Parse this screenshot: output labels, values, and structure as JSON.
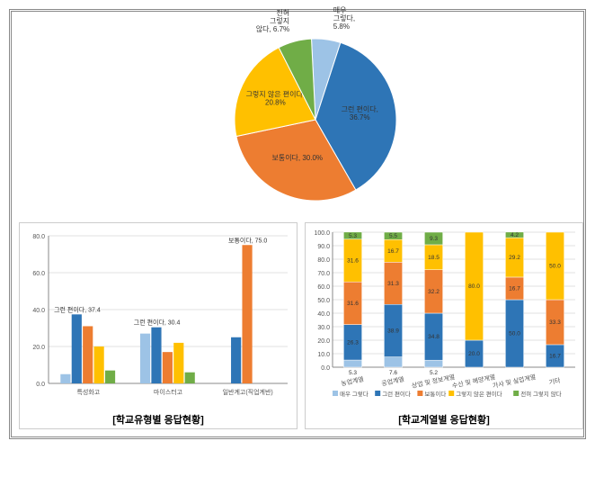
{
  "pie": {
    "type": "pie",
    "slices": [
      {
        "label": "매우 그렇다",
        "value": 5.8,
        "color": "#9dc3e6",
        "label_text": "매우\n그렇다,\n5.8%"
      },
      {
        "label": "그런 편이다",
        "value": 36.7,
        "color": "#2e75b6",
        "label_text": "그런 편이다,\n36.7%"
      },
      {
        "label": "보통이다",
        "value": 30.0,
        "color": "#ed7d31",
        "label_text": "보통이다, 30.0%"
      },
      {
        "label": "그렇지 않은 편이다",
        "value": 20.8,
        "color": "#ffc000",
        "label_text": "그렇지 않은 편이다,\n20.8%"
      },
      {
        "label": "전혀 그렇지 않다",
        "value": 6.7,
        "color": "#70ad47",
        "label_text": "전혀\n그렇지\n않다, 6.7%"
      }
    ],
    "background_color": "#ffffff",
    "border_color": "#ffffff"
  },
  "bar_left": {
    "type": "bar",
    "ylim": [
      0,
      80
    ],
    "ytick_step": 20,
    "grid_color": "#e0e0e0",
    "colors": [
      "#9dc3e6",
      "#2e75b6",
      "#ed7d31",
      "#ffc000",
      "#70ad47"
    ],
    "series_names": [
      "매우 그렇다",
      "그런 편이다",
      "보통이다",
      "그렇지 않은 편이다",
      "전혀 그렇지 않다"
    ],
    "groups": [
      {
        "label": "특성화고",
        "values": [
          5,
          37.4,
          31,
          20,
          7
        ],
        "annot": {
          "text": "그런 편이다, 37.4",
          "i": 1
        }
      },
      {
        "label": "마이스터고",
        "values": [
          27,
          30.4,
          17,
          22,
          6
        ],
        "annot": {
          "text": "그런 편이다, 30.4",
          "i": 1
        }
      },
      {
        "label": "일반계고(직업계반)",
        "values": [
          0,
          25,
          75.0,
          0,
          0
        ],
        "annot": {
          "text": "보통이다, 75.0",
          "i": 2
        }
      }
    ],
    "caption": "[학교유형별 응답현황]"
  },
  "bar_right": {
    "type": "stacked-bar",
    "ylim": [
      0,
      100
    ],
    "ytick_step": 10,
    "grid_color": "#e0e0e0",
    "colors": [
      "#9dc3e6",
      "#2e75b6",
      "#ed7d31",
      "#ffc000",
      "#70ad47"
    ],
    "series_names": [
      "매우 그렇다",
      "그런 편이다",
      "보통이다",
      "그렇지 않은 편이다",
      "전혀 그렇지 않다"
    ],
    "groups": [
      {
        "label": "농업계열",
        "values": [
          5.3,
          26.3,
          31.6,
          31.6,
          5.3
        ],
        "show": [
          "5.3",
          "26.3",
          "31.6",
          "31.6",
          "5.3"
        ]
      },
      {
        "label": "공업계열",
        "values": [
          7.6,
          38.9,
          31.3,
          16.7,
          5.5
        ],
        "show": [
          "7.6",
          "38.9",
          "31.3",
          "16.7",
          "5.5"
        ]
      },
      {
        "label": "상업 및 정보계열",
        "values": [
          5.2,
          34.8,
          32.2,
          18.5,
          9.3
        ],
        "show": [
          "5.2",
          "34.8",
          "32.2",
          "18.5",
          "9.3"
        ]
      },
      {
        "label": "수산 및 해양계열",
        "values": [
          0,
          20.0,
          0,
          80.0,
          0
        ],
        "show": [
          "",
          "20.0",
          "",
          "80.0",
          ""
        ]
      },
      {
        "label": "가사 및 실업계열",
        "values": [
          0,
          50.0,
          16.7,
          29.2,
          4.2
        ],
        "show": [
          "",
          "50.0",
          "16.7",
          "29.2",
          "4.2"
        ]
      },
      {
        "label": "기타",
        "values": [
          0,
          16.7,
          33.3,
          50.0,
          0
        ],
        "show": [
          "",
          "16.7",
          "33.3",
          "50.0",
          ""
        ]
      }
    ],
    "legend_items": [
      "매우 그렇다",
      "그런 편이다",
      "보통이다",
      "그렇지 않은 편이다",
      "전혀 그렇지 않다"
    ],
    "caption": "[학교계열별 응답현황]"
  }
}
